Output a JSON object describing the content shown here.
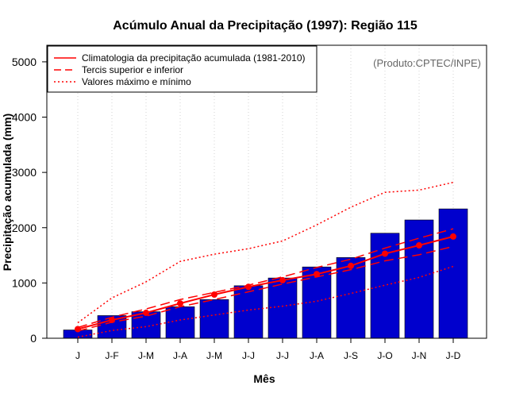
{
  "chart_data": {
    "type": "bar",
    "title": "Acúmulo Anual da Precipitação (1997): Região 115",
    "xlabel": "Mês",
    "ylabel": "Precipitação acumulada (mm)",
    "credit": "(Produto:CPTEC/INPE)",
    "ylim": [
      0,
      5300
    ],
    "yticks": [
      0,
      1000,
      2000,
      3000,
      4000,
      5000
    ],
    "categories": [
      "J",
      "J-F",
      "J-M",
      "J-A",
      "J-M",
      "J-J",
      "J-J",
      "J-A",
      "J-S",
      "J-O",
      "J-N",
      "J-D"
    ],
    "bar_color": "#0000cd",
    "line_color": "#ff0000",
    "series": [
      {
        "name": "Precipitação acumulada 1997",
        "style": "bar",
        "values": [
          150,
          410,
          480,
          570,
          700,
          950,
          1090,
          1290,
          1460,
          1900,
          2140,
          2340
        ]
      },
      {
        "name": "Climatologia da precipitação acumulada (1981-2010)",
        "style": "solid-points",
        "values": [
          165,
          330,
          460,
          630,
          790,
          930,
          1050,
          1160,
          1310,
          1530,
          1680,
          1840
        ]
      },
      {
        "name": "Tercil superior",
        "style": "dashed",
        "values": [
          195,
          380,
          530,
          700,
          830,
          960,
          1110,
          1280,
          1430,
          1630,
          1810,
          1980
        ]
      },
      {
        "name": "Tercil inferior",
        "style": "dashed",
        "values": [
          130,
          290,
          400,
          570,
          700,
          840,
          980,
          1110,
          1240,
          1400,
          1510,
          1660
        ]
      },
      {
        "name": "Valor máximo",
        "style": "dotted",
        "values": [
          280,
          730,
          1020,
          1390,
          1520,
          1620,
          1760,
          2050,
          2370,
          2640,
          2680,
          2820
        ]
      },
      {
        "name": "Valor mínimo",
        "style": "dotted",
        "values": [
          20,
          140,
          210,
          330,
          420,
          510,
          580,
          670,
          810,
          960,
          1100,
          1300
        ]
      }
    ],
    "legend": {
      "position": "top-left",
      "entries": [
        {
          "label": "Climatologia da precipitação acumulada (1981-2010)",
          "style": "solid"
        },
        {
          "label": "Tercis superior e inferior",
          "style": "dashed"
        },
        {
          "label": "Valores máximo e mínimo",
          "style": "dotted"
        }
      ]
    },
    "grid": "vertical-dotted"
  }
}
